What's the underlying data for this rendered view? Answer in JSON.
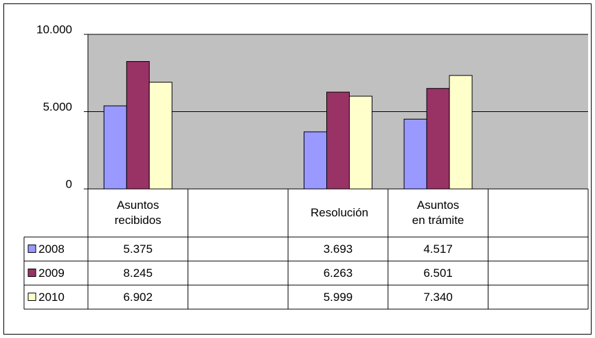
{
  "chart_data": {
    "type": "bar",
    "categories": [
      "Asuntos recibidos",
      null,
      "Resolución",
      "Asuntos en trámite",
      null
    ],
    "series": [
      {
        "name": "2008",
        "color": "#9999ff",
        "values": [
          5375,
          null,
          3693,
          4517,
          null
        ],
        "value_labels": [
          "5.375",
          null,
          "3.693",
          "4.517",
          null
        ]
      },
      {
        "name": "2009",
        "color": "#993366",
        "values": [
          8245,
          null,
          6263,
          6501,
          null
        ],
        "value_labels": [
          "8.245",
          null,
          "6.263",
          "6.501",
          null
        ]
      },
      {
        "name": "2010",
        "color": "#ffffcc",
        "values": [
          6902,
          null,
          5999,
          7340,
          null
        ],
        "value_labels": [
          "6.902",
          null,
          "5.999",
          "7.340",
          null
        ]
      }
    ],
    "ylim": [
      0,
      10000
    ],
    "yticks": [
      0,
      {
        "value": 5000,
        "label": "5.000"
      },
      {
        "value": 10000,
        "label": "10.000"
      }
    ],
    "grid": true,
    "plot_background": "#c0c0c0",
    "data_table": true
  }
}
